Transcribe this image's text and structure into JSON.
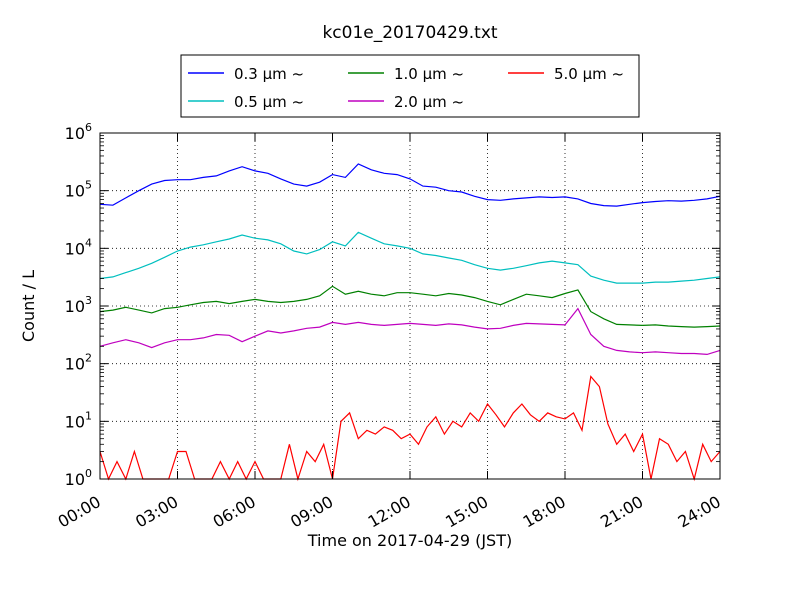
{
  "chart_data": {
    "type": "line",
    "title": "kc01e_20170429.txt",
    "xlabel": "Time on 2017-04-29 (JST)",
    "ylabel": "Count / L",
    "y_scale": "log",
    "ylim": [
      1,
      1000000
    ],
    "xlim": [
      "00:00",
      "24:00"
    ],
    "x_ticks": [
      "00:00",
      "03:00",
      "06:00",
      "09:00",
      "12:00",
      "15:00",
      "18:00",
      "21:00",
      "24:00"
    ],
    "y_ticks": [
      {
        "value": 1,
        "base": "10",
        "exp": "0"
      },
      {
        "value": 10,
        "base": "10",
        "exp": "1"
      },
      {
        "value": 100,
        "base": "10",
        "exp": "2"
      },
      {
        "value": 1000,
        "base": "10",
        "exp": "3"
      },
      {
        "value": 10000,
        "base": "10",
        "exp": "4"
      },
      {
        "value": 100000,
        "base": "10",
        "exp": "5"
      },
      {
        "value": 1000000,
        "base": "10",
        "exp": "6"
      }
    ],
    "grid": true,
    "legend_position": "top-center",
    "legend_suffix": "~",
    "x_unit": "hours",
    "series": [
      {
        "name": "0.3 μm",
        "color": "#0000ff",
        "x": [
          0,
          0.5,
          1,
          1.5,
          2,
          2.5,
          3,
          3.5,
          4,
          4.5,
          5,
          5.5,
          6,
          6.5,
          7,
          7.5,
          8,
          8.5,
          9,
          9.5,
          10,
          10.5,
          11,
          11.5,
          12,
          12.5,
          13,
          13.5,
          14,
          14.5,
          15,
          15.5,
          16,
          16.5,
          17,
          17.5,
          18,
          18.5,
          19,
          19.5,
          20,
          20.5,
          21,
          21.5,
          22,
          22.5,
          23,
          23.5,
          24
        ],
        "values": [
          58000,
          56000,
          75000,
          100000,
          130000,
          150000,
          155000,
          155000,
          170000,
          180000,
          220000,
          260000,
          220000,
          200000,
          160000,
          130000,
          120000,
          140000,
          190000,
          170000,
          290000,
          230000,
          200000,
          190000,
          160000,
          120000,
          115000,
          100000,
          95000,
          80000,
          70000,
          68000,
          72000,
          75000,
          78000,
          76000,
          78000,
          72000,
          60000,
          55000,
          54000,
          58000,
          62000,
          65000,
          67000,
          66000,
          68000,
          72000,
          80000
        ]
      },
      {
        "name": "0.5 μm",
        "color": "#00bfbf",
        "x": [
          0,
          0.5,
          1,
          1.5,
          2,
          2.5,
          3,
          3.5,
          4,
          4.5,
          5,
          5.5,
          6,
          6.5,
          7,
          7.5,
          8,
          8.5,
          9,
          9.5,
          10,
          10.5,
          11,
          11.5,
          12,
          12.5,
          13,
          13.5,
          14,
          14.5,
          15,
          15.5,
          16,
          16.5,
          17,
          17.5,
          18,
          18.5,
          19,
          19.5,
          20,
          20.5,
          21,
          21.5,
          22,
          22.5,
          23,
          23.5,
          24
        ],
        "values": [
          3000,
          3200,
          3800,
          4500,
          5500,
          7000,
          9000,
          10500,
          11500,
          13000,
          14500,
          17000,
          15000,
          14000,
          12000,
          9000,
          8000,
          9500,
          13000,
          11000,
          19000,
          15000,
          12000,
          11000,
          10000,
          8000,
          7500,
          6800,
          6200,
          5200,
          4500,
          4200,
          4500,
          5000,
          5600,
          6000,
          5600,
          5200,
          3300,
          2800,
          2500,
          2500,
          2500,
          2600,
          2600,
          2700,
          2800,
          3000,
          3200
        ]
      },
      {
        "name": "1.0 μm",
        "color": "#008000",
        "x": [
          0,
          0.5,
          1,
          1.5,
          2,
          2.5,
          3,
          3.5,
          4,
          4.5,
          5,
          5.5,
          6,
          6.5,
          7,
          7.5,
          8,
          8.5,
          9,
          9.5,
          10,
          10.5,
          11,
          11.5,
          12,
          12.5,
          13,
          13.5,
          14,
          14.5,
          15,
          15.5,
          16,
          16.5,
          17,
          17.5,
          18,
          18.5,
          19,
          19.5,
          20,
          20.5,
          21,
          21.5,
          22,
          22.5,
          23,
          23.5,
          24
        ],
        "values": [
          800,
          850,
          950,
          850,
          760,
          900,
          950,
          1050,
          1150,
          1200,
          1100,
          1200,
          1300,
          1200,
          1150,
          1200,
          1300,
          1500,
          2200,
          1600,
          1800,
          1600,
          1500,
          1700,
          1700,
          1600,
          1500,
          1650,
          1550,
          1400,
          1200,
          1050,
          1300,
          1600,
          1500,
          1400,
          1650,
          1900,
          800,
          600,
          480,
          470,
          460,
          470,
          450,
          440,
          430,
          440,
          450
        ]
      },
      {
        "name": "2.0 μm",
        "color": "#bf00bf",
        "x": [
          0,
          0.5,
          1,
          1.5,
          2,
          2.5,
          3,
          3.5,
          4,
          4.5,
          5,
          5.5,
          6,
          6.5,
          7,
          7.5,
          8,
          8.5,
          9,
          9.5,
          10,
          10.5,
          11,
          11.5,
          12,
          12.5,
          13,
          13.5,
          14,
          14.5,
          15,
          15.5,
          16,
          16.5,
          17,
          17.5,
          18,
          18.5,
          19,
          19.5,
          20,
          20.5,
          21,
          21.5,
          22,
          22.5,
          23,
          23.5,
          24
        ],
        "values": [
          200,
          230,
          260,
          230,
          190,
          230,
          260,
          260,
          280,
          320,
          310,
          240,
          300,
          370,
          340,
          370,
          410,
          430,
          520,
          480,
          520,
          480,
          460,
          480,
          500,
          480,
          460,
          490,
          470,
          430,
          400,
          410,
          460,
          500,
          490,
          480,
          470,
          900,
          320,
          200,
          170,
          160,
          155,
          160,
          155,
          150,
          150,
          145,
          170
        ]
      },
      {
        "name": "5.0 μm",
        "color": "#ff0000",
        "x": [
          0,
          0.33,
          0.66,
          1,
          1.33,
          1.66,
          2,
          2.33,
          2.66,
          3,
          3.33,
          3.66,
          4,
          4.33,
          4.66,
          5,
          5.33,
          5.66,
          6,
          6.33,
          6.66,
          7,
          7.33,
          7.66,
          8,
          8.33,
          8.66,
          9,
          9.33,
          9.66,
          10,
          10.33,
          10.66,
          11,
          11.33,
          11.66,
          12,
          12.33,
          12.66,
          13,
          13.33,
          13.66,
          14,
          14.33,
          14.66,
          15,
          15.33,
          15.66,
          16,
          16.33,
          16.66,
          17,
          17.33,
          17.66,
          18,
          18.33,
          18.66,
          19,
          19.33,
          19.66,
          20,
          20.33,
          20.66,
          21,
          21.33,
          21.66,
          22,
          22.33,
          22.66,
          23,
          23.33,
          23.66,
          24
        ],
        "values": [
          3,
          1,
          2,
          1,
          3,
          1,
          1,
          1,
          1,
          3,
          3,
          1,
          1,
          1,
          2,
          1,
          2,
          1,
          2,
          1,
          1,
          1,
          4,
          1,
          3,
          2,
          4,
          1,
          10,
          14,
          5,
          7,
          6,
          8,
          7,
          5,
          6,
          4,
          8,
          12,
          6,
          10,
          8,
          14,
          10,
          20,
          13,
          8,
          14,
          20,
          13,
          10,
          14,
          12,
          11,
          14,
          7,
          60,
          40,
          9,
          4,
          6,
          3,
          6,
          1,
          5,
          4,
          2,
          3,
          1,
          4,
          2,
          3
        ]
      }
    ]
  }
}
